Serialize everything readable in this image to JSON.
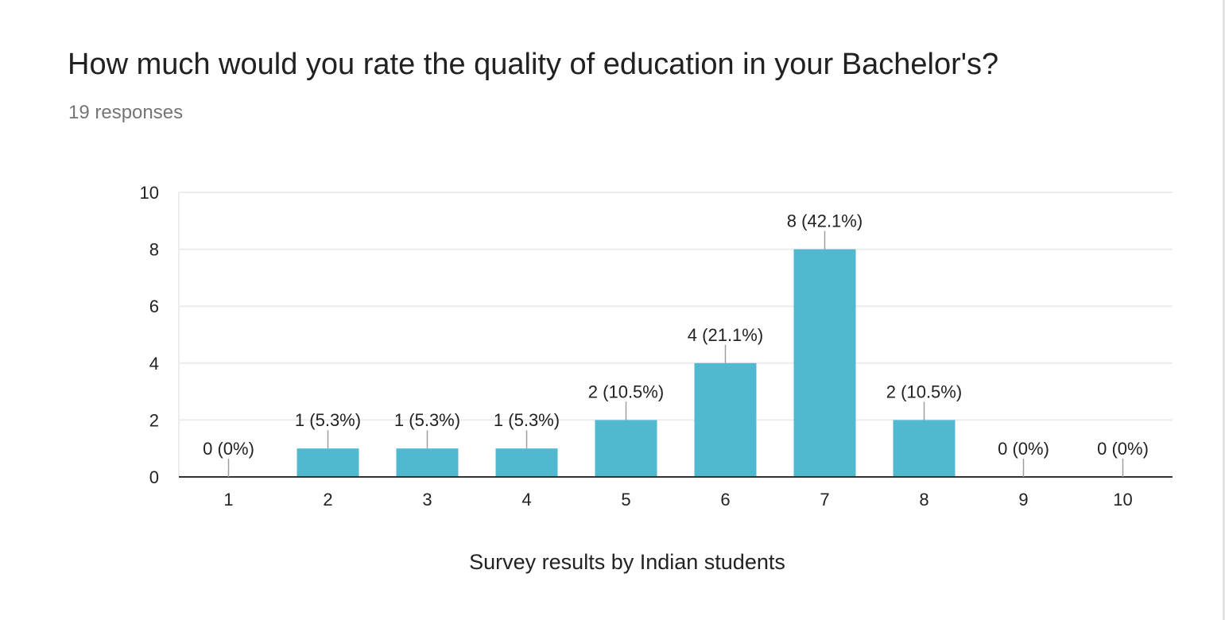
{
  "question": {
    "title": "How much would you rate the quality of education in your Bachelor's?",
    "responses": "19 responses"
  },
  "colors": {
    "bar": "#50b9d0",
    "gridline": "#ececec",
    "baseline": "#333333",
    "text": "#222222",
    "muted": "#757575"
  },
  "chart_data": {
    "type": "bar",
    "title": "",
    "xlabel": "Survey results by Indian students",
    "ylabel": "",
    "categories": [
      "1",
      "2",
      "3",
      "4",
      "5",
      "6",
      "7",
      "8",
      "9",
      "10"
    ],
    "values": [
      0,
      1,
      1,
      1,
      2,
      4,
      8,
      2,
      0,
      0
    ],
    "data_labels": [
      "0 (0%)",
      "1 (5.3%)",
      "1 (5.3%)",
      "1 (5.3%)",
      "2 (10.5%)",
      "4 (21.1%)",
      "8 (42.1%)",
      "2 (10.5%)",
      "0 (0%)",
      "0 (0%)"
    ],
    "ylim": [
      0,
      10
    ],
    "yticks": [
      0,
      2,
      4,
      6,
      8,
      10
    ],
    "grid": true,
    "legend": "none"
  }
}
